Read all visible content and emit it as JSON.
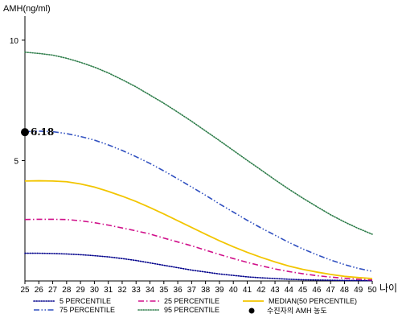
{
  "chart_data": {
    "type": "line",
    "ylabel": "AMH(ng/ml)",
    "xunit": "나이",
    "x": [
      25,
      26,
      27,
      28,
      29,
      30,
      31,
      32,
      33,
      34,
      35,
      36,
      37,
      38,
      39,
      40,
      41,
      42,
      43,
      44,
      45,
      46,
      47,
      48,
      49,
      50
    ],
    "ylim": [
      0,
      11
    ],
    "xlim": [
      25,
      50
    ],
    "yticks": [
      5,
      10
    ],
    "legend_position": "bottom",
    "series": [
      {
        "name": "5 PERCENTILE",
        "color": "#00008b",
        "style": "dotted",
        "values": [
          1.15,
          1.15,
          1.14,
          1.12,
          1.09,
          1.05,
          1.0,
          0.93,
          0.85,
          0.75,
          0.65,
          0.55,
          0.45,
          0.37,
          0.29,
          0.23,
          0.17,
          0.13,
          0.1,
          0.07,
          0.05,
          0.04,
          0.03,
          0.02,
          0.02,
          0.01
        ]
      },
      {
        "name": "25 PERCENTILE",
        "color": "#d0108a",
        "style": "dashdot",
        "values": [
          2.55,
          2.56,
          2.56,
          2.55,
          2.5,
          2.42,
          2.32,
          2.2,
          2.08,
          1.95,
          1.78,
          1.62,
          1.46,
          1.28,
          1.1,
          0.93,
          0.77,
          0.63,
          0.5,
          0.39,
          0.3,
          0.22,
          0.16,
          0.11,
          0.07,
          0.04
        ]
      },
      {
        "name": "MEDIAN(50 PERCENTILE)",
        "color": "#f2c500",
        "style": "solid",
        "values": [
          4.15,
          4.16,
          4.15,
          4.12,
          4.03,
          3.9,
          3.72,
          3.52,
          3.3,
          3.05,
          2.78,
          2.5,
          2.22,
          1.94,
          1.67,
          1.42,
          1.19,
          0.98,
          0.79,
          0.62,
          0.48,
          0.37,
          0.27,
          0.19,
          0.14,
          0.1
        ]
      },
      {
        "name": "75 PERCENTILE",
        "color": "#3050c0",
        "style": "dashdotdot",
        "values": [
          6.2,
          6.22,
          6.2,
          6.12,
          6.0,
          5.85,
          5.65,
          5.42,
          5.16,
          4.88,
          4.57,
          4.24,
          3.9,
          3.56,
          3.2,
          2.86,
          2.52,
          2.2,
          1.9,
          1.6,
          1.33,
          1.09,
          0.87,
          0.68,
          0.52,
          0.4
        ]
      },
      {
        "name": "95 PERCENTILE",
        "color": "#2e7d4a",
        "style": "dotted",
        "values": [
          9.5,
          9.45,
          9.38,
          9.25,
          9.08,
          8.88,
          8.64,
          8.36,
          8.06,
          7.72,
          7.38,
          7.01,
          6.63,
          6.23,
          5.83,
          5.42,
          5.01,
          4.61,
          4.2,
          3.81,
          3.44,
          3.09,
          2.75,
          2.45,
          2.18,
          1.94
        ]
      }
    ],
    "marker": {
      "label": "수진자의 AMH 농도",
      "value_label": "6.18",
      "x": 25,
      "y": 6.18
    }
  }
}
